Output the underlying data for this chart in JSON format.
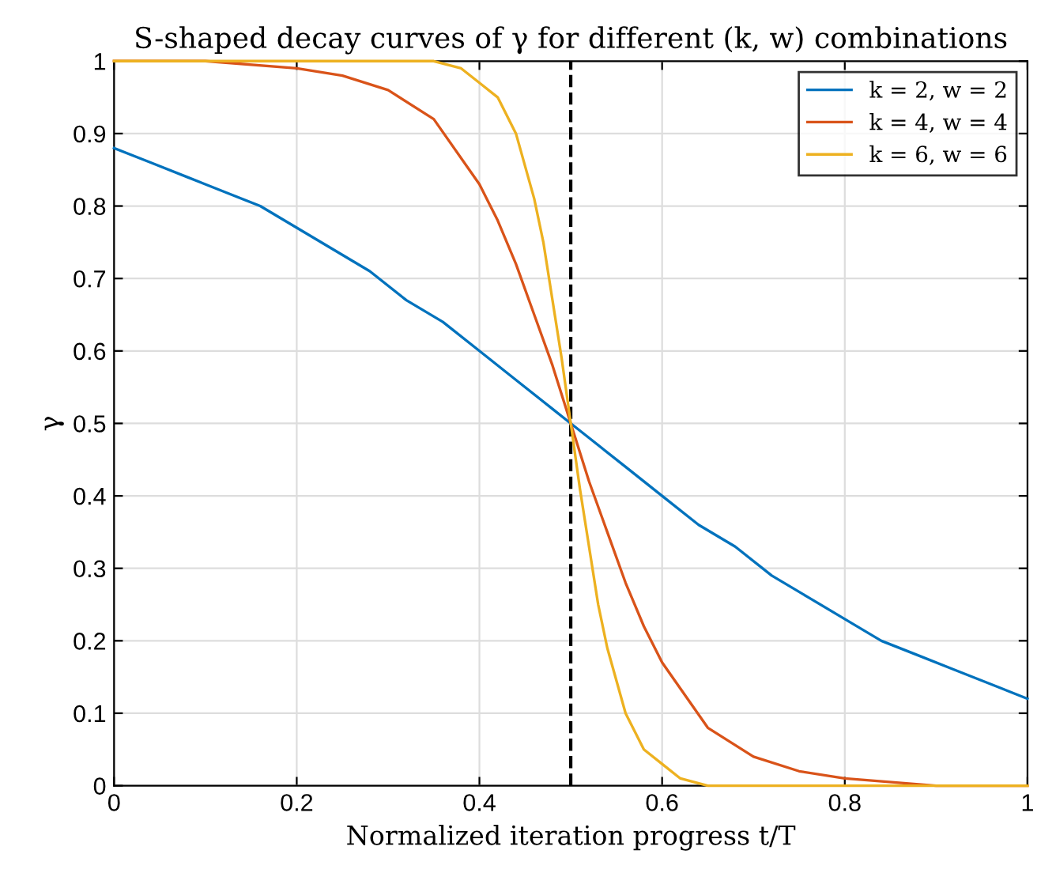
{
  "chart_data": {
    "type": "line",
    "title": "S-shaped decay curves of γ for different (k, w) combinations",
    "xlabel": "Normalized iteration progress t/T",
    "ylabel": "γ",
    "series": [
      {
        "name": "k = 2, w = 2",
        "color": "#0072bd",
        "x": [
          0,
          0.04,
          0.08,
          0.12,
          0.16,
          0.2,
          0.24,
          0.28,
          0.32,
          0.36,
          0.4,
          0.44,
          0.48,
          0.5,
          0.52,
          0.56,
          0.6,
          0.64,
          0.68,
          0.72,
          0.76,
          0.8,
          0.84,
          0.88,
          0.92,
          0.96,
          1
        ],
        "values": [
          0.88,
          0.86,
          0.84,
          0.82,
          0.8,
          0.77,
          0.74,
          0.71,
          0.67,
          0.64,
          0.6,
          0.56,
          0.52,
          0.5,
          0.48,
          0.44,
          0.4,
          0.36,
          0.33,
          0.29,
          0.26,
          0.23,
          0.2,
          0.18,
          0.16,
          0.14,
          0.12
        ]
      },
      {
        "name": "k = 4, w = 4",
        "color": "#d95319",
        "x": [
          0,
          0.1,
          0.2,
          0.25,
          0.3,
          0.35,
          0.4,
          0.42,
          0.44,
          0.46,
          0.48,
          0.5,
          0.52,
          0.54,
          0.56,
          0.58,
          0.6,
          0.65,
          0.7,
          0.75,
          0.8,
          0.9,
          1
        ],
        "values": [
          1.0,
          1.0,
          0.99,
          0.98,
          0.96,
          0.92,
          0.83,
          0.78,
          0.72,
          0.65,
          0.58,
          0.5,
          0.42,
          0.35,
          0.28,
          0.22,
          0.17,
          0.08,
          0.04,
          0.02,
          0.01,
          0.0,
          0.0
        ]
      },
      {
        "name": "k = 6, w = 6",
        "color": "#edb120",
        "x": [
          0,
          0.1,
          0.2,
          0.3,
          0.35,
          0.38,
          0.4,
          0.42,
          0.44,
          0.46,
          0.47,
          0.48,
          0.49,
          0.5,
          0.51,
          0.52,
          0.53,
          0.54,
          0.56,
          0.58,
          0.6,
          0.62,
          0.65,
          0.7,
          0.8,
          0.9,
          1
        ],
        "values": [
          1.0,
          1.0,
          1.0,
          1.0,
          1.0,
          0.99,
          0.97,
          0.95,
          0.9,
          0.81,
          0.75,
          0.67,
          0.59,
          0.5,
          0.41,
          0.33,
          0.25,
          0.19,
          0.1,
          0.05,
          0.03,
          0.01,
          0.0,
          0.0,
          0.0,
          0.0,
          0.0
        ]
      }
    ],
    "ref_lines": [
      {
        "axis": "x",
        "value": 0.5,
        "color": "#000000",
        "line_style": "dashed"
      }
    ],
    "xlim": [
      0,
      1
    ],
    "ylim": [
      0,
      1
    ],
    "xticks": [
      0,
      0.2,
      0.4,
      0.6,
      0.8,
      1
    ],
    "yticks": [
      0,
      0.1,
      0.2,
      0.3,
      0.4,
      0.5,
      0.6,
      0.7,
      0.8,
      0.9,
      1
    ],
    "grid": true,
    "legend": "top right",
    "line_style": "solid"
  }
}
